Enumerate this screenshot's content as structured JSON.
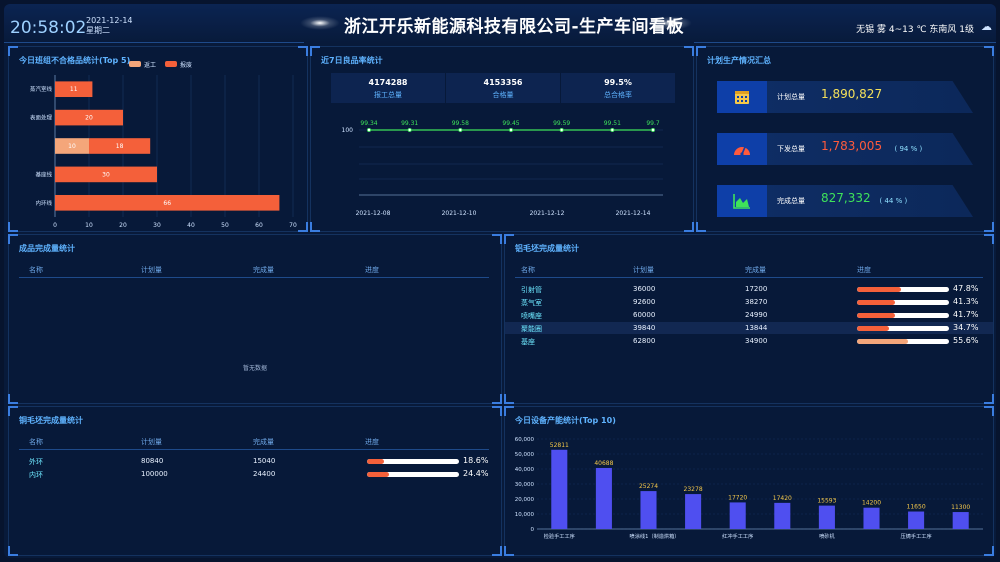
{
  "header": {
    "time": "20:58:02",
    "date": "2021-12-14",
    "weekday": "星期二",
    "title": "浙江开乐新能源科技有限公司-生产车间看板",
    "weather": "无锡 雾 4~13 ℃ 东南风 1级"
  },
  "defects": {
    "title": "今日班组不合格品统计(Top 5)",
    "legend": [
      "返工",
      "报废"
    ],
    "colors": {
      "rework": "#f4a67a",
      "scrap": "#f4603a"
    },
    "chart_data": {
      "type": "bar",
      "orientation": "horizontal",
      "categories": [
        "蒸汽室线",
        "表面处理",
        "",
        "基座线",
        "内环线"
      ],
      "series": [
        {
          "name": "返工",
          "values": [
            0,
            0,
            10,
            0,
            0
          ]
        },
        {
          "name": "报废",
          "values": [
            11,
            20,
            18,
            30,
            66
          ]
        }
      ],
      "xlim": [
        0,
        70
      ],
      "xticks": [
        0,
        10,
        20,
        30,
        40,
        50,
        60,
        70
      ]
    }
  },
  "yield": {
    "title": "近7日良品率统计",
    "kpis": [
      {
        "value": "4174288",
        "label": "报工总量"
      },
      {
        "value": "4153356",
        "label": "合格量"
      },
      {
        "value": "99.5%",
        "label": "总合格率"
      }
    ],
    "chart_data": {
      "type": "line",
      "values": [
        99.34,
        99.31,
        99.58,
        99.45,
        99.59,
        99.51,
        99.7
      ],
      "y_tick": "100",
      "x_labels": [
        "2021-12-08",
        "2021-12-10",
        "2021-12-12",
        "2021-12-14"
      ],
      "color": "#3ee35a"
    }
  },
  "plan": {
    "title": "计划生产情况汇总",
    "items": [
      {
        "label": "计划总量",
        "value": "1,890,827",
        "pct": "",
        "color": "#f5e15a",
        "icon": "calendar-icon"
      },
      {
        "label": "下发总量",
        "value": "1,783,005",
        "pct": "( 94 % )",
        "color": "#ff5a3c",
        "icon": "gauge-icon"
      },
      {
        "label": "完成总量",
        "value": "827,332",
        "pct": "( 44 % )",
        "color": "#3ee35a",
        "icon": "area-chart-icon"
      }
    ]
  },
  "finished": {
    "title": "成品完成量统计",
    "headers": [
      "名称",
      "计划量",
      "完成量",
      "进度"
    ],
    "empty": "暂无数据"
  },
  "aluminum": {
    "title": "铝毛坯完成量统计",
    "headers": [
      "名称",
      "计划量",
      "完成量",
      "进度"
    ],
    "rows": [
      {
        "name": "引射管",
        "plan": "36000",
        "done": "17200",
        "pct": "47.8%",
        "progress": 0.478,
        "color": "#f4603a"
      },
      {
        "name": "蒸气室",
        "plan": "92600",
        "done": "38270",
        "pct": "41.3%",
        "progress": 0.413,
        "color": "#f4603a"
      },
      {
        "name": "喷嘴座",
        "plan": "60000",
        "done": "24990",
        "pct": "41.7%",
        "progress": 0.417,
        "color": "#f4603a"
      },
      {
        "name": "聚能圈",
        "plan": "39840",
        "done": "13844",
        "pct": "34.7%",
        "progress": 0.347,
        "color": "#f4603a"
      },
      {
        "name": "基座",
        "plan": "62800",
        "done": "34900",
        "pct": "55.6%",
        "progress": 0.556,
        "color": "#f4a67a"
      }
    ]
  },
  "copper": {
    "title": "铜毛坯完成量统计",
    "headers": [
      "名称",
      "计划量",
      "完成量",
      "进度"
    ],
    "rows": [
      {
        "name": "外环",
        "plan": "80840",
        "done": "15040",
        "pct": "18.6%",
        "progress": 0.186,
        "color": "#f4603a"
      },
      {
        "name": "内环",
        "plan": "100000",
        "done": "24400",
        "pct": "24.4%",
        "progress": 0.244,
        "color": "#f4603a"
      }
    ]
  },
  "equipment": {
    "title": "今日设备产能统计(Top 10)",
    "chart_data": {
      "type": "bar",
      "values": [
        52811,
        40688,
        25274,
        23278,
        17720,
        17420,
        15593,
        14200,
        11650,
        11300
      ],
      "x_labels": [
        "检验手工工序",
        "",
        "喷涂线1（制造烘箱）",
        "",
        "红冲手工工序",
        "",
        "喷砂机",
        "",
        "压铸手工工序",
        ""
      ],
      "yticks": [
        "0",
        "10,000",
        "20,000",
        "30,000",
        "40,000",
        "50,000",
        "60,000"
      ],
      "ylim": [
        0,
        60000
      ],
      "bar_color": "#4f4ff0",
      "label_color": "#f5c84a"
    }
  }
}
